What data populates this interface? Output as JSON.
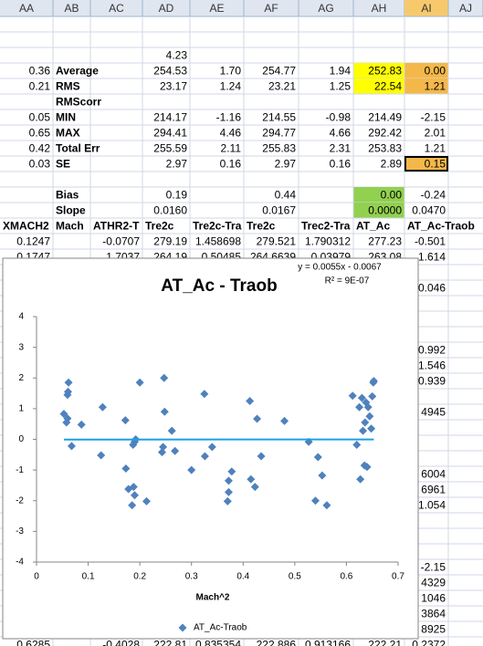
{
  "sheet": {
    "column_headers": [
      "AA",
      "AB",
      "AC",
      "AD",
      "AE",
      "AF",
      "AG",
      "AH",
      "AI",
      "AJ"
    ],
    "rows": [
      null,
      null,
      [
        null,
        null,
        null,
        "4.23",
        null,
        null,
        null,
        null,
        null,
        null
      ],
      [
        "0.36",
        "Average",
        null,
        "254.53",
        "1.70",
        "254.77",
        "1.94",
        "252.83",
        "0.00",
        null
      ],
      [
        "0.21",
        "RMS",
        null,
        "23.17",
        "1.24",
        "23.21",
        "1.25",
        "22.54",
        "1.21",
        null
      ],
      [
        null,
        "RMScorr",
        null,
        null,
        null,
        null,
        null,
        null,
        null,
        null
      ],
      [
        "0.05",
        "MIN",
        null,
        "214.17",
        "-1.16",
        "214.55",
        "-0.98",
        "214.49",
        "-2.15",
        null
      ],
      [
        "0.65",
        "MAX",
        null,
        "294.41",
        "4.46",
        "294.77",
        "4.66",
        "292.42",
        "2.01",
        null
      ],
      [
        "0.42",
        "Total Err",
        null,
        "255.59",
        "2.11",
        "255.83",
        "2.31",
        "253.83",
        "1.21",
        null
      ],
      [
        "0.03",
        "SE",
        null,
        "2.97",
        "0.16",
        "2.97",
        "0.16",
        "2.89",
        "0.15",
        null
      ],
      null,
      [
        null,
        "Bias",
        null,
        "0.19",
        null,
        "0.44",
        null,
        "0.00",
        "-0.24",
        null
      ],
      [
        null,
        "Slope",
        null,
        "0.0160",
        null,
        "0.0167",
        null,
        "0.0000",
        "0.0470",
        null
      ],
      [
        "XMACH2",
        "Mach",
        "ATHR2-T",
        "Tre2c",
        "Tre2c-Tra",
        "Tre2c",
        "Trec2-Tra",
        "AT_Ac",
        "AT_Ac-Traob",
        null
      ],
      [
        "0.1247",
        null,
        "-0.0707",
        "279.19",
        "1.458698",
        "279.521",
        "1.790312",
        "277.23",
        "-0.501",
        null
      ],
      [
        "0.1747",
        null,
        "1.7037",
        "264.19",
        "0.50485",
        "264.6639",
        "0.03979",
        "263.08",
        "1.614",
        null
      ],
      null,
      [
        null,
        null,
        null,
        null,
        null,
        null,
        null,
        null,
        "0.046",
        null
      ],
      null,
      null,
      null,
      [
        null,
        null,
        null,
        null,
        null,
        null,
        null,
        null,
        "0.992",
        null
      ],
      [
        null,
        null,
        null,
        null,
        null,
        null,
        null,
        null,
        "1.546",
        null
      ],
      [
        null,
        null,
        null,
        null,
        null,
        null,
        null,
        null,
        "0.939",
        null
      ],
      null,
      [
        null,
        null,
        null,
        null,
        null,
        null,
        null,
        null,
        "4945",
        null
      ],
      null,
      null,
      null,
      [
        null,
        null,
        null,
        null,
        null,
        null,
        null,
        null,
        "6004",
        null
      ],
      [
        null,
        null,
        null,
        null,
        null,
        null,
        null,
        null,
        "6961",
        null
      ],
      [
        null,
        null,
        null,
        null,
        null,
        null,
        null,
        null,
        "1.054",
        null
      ],
      null,
      null,
      null,
      [
        null,
        null,
        null,
        null,
        null,
        null,
        null,
        null,
        "-2.15",
        null
      ],
      [
        null,
        null,
        null,
        null,
        null,
        null,
        null,
        null,
        "4329",
        null
      ],
      [
        null,
        null,
        null,
        null,
        null,
        null,
        null,
        null,
        "1046",
        null
      ],
      [
        null,
        null,
        null,
        null,
        null,
        null,
        null,
        null,
        "3864",
        null
      ],
      [
        null,
        null,
        null,
        null,
        null,
        null,
        null,
        null,
        "8925",
        null
      ],
      [
        "0.6285",
        null,
        "-0.4028",
        "222.81",
        "0.835354",
        "222.886",
        "0.913166",
        "222.21",
        "0.2372",
        null
      ]
    ]
  },
  "chart_data": {
    "type": "scatter",
    "title": "AT_Ac - Traob",
    "annotations": [
      "y = 0.0055x - 0.0067",
      "R² = 9E-07"
    ],
    "x_label": "Mach^2",
    "xlim": [
      0,
      0.7
    ],
    "xticks": [
      0,
      0.1,
      0.2,
      0.3,
      0.4,
      0.5,
      0.6,
      0.7
    ],
    "ylim": [
      -4,
      4
    ],
    "yticks": [
      -4,
      -3,
      -2,
      -1,
      0,
      1,
      2,
      3,
      4
    ],
    "legend": "bottom",
    "trendline": {
      "slope": 0.0055,
      "intercept": -0.0067,
      "color": "#1ba1e2"
    },
    "series": [
      {
        "name": "AT_Ac-Traob",
        "color": "#4f81bd",
        "x": [
          0.062,
          0.061,
          0.06,
          0.053,
          0.06,
          0.058,
          0.068,
          0.087,
          0.128,
          0.125,
          0.172,
          0.173,
          0.178,
          0.185,
          0.187,
          0.19,
          0.192,
          0.188,
          0.19,
          0.2,
          0.213,
          0.247,
          0.248,
          0.243,
          0.245,
          0.262,
          0.268,
          0.3,
          0.325,
          0.326,
          0.34,
          0.37,
          0.372,
          0.372,
          0.378,
          0.413,
          0.415,
          0.423,
          0.427,
          0.435,
          0.48,
          0.527,
          0.54,
          0.545,
          0.553,
          0.562,
          0.612,
          0.62,
          0.625,
          0.627,
          0.63,
          0.632,
          0.635,
          0.638,
          0.64,
          0.642,
          0.645,
          0.648,
          0.65,
          0.652,
          0.653,
          0.636
        ],
        "values": [
          1.85,
          1.55,
          1.45,
          0.83,
          0.68,
          0.55,
          -0.22,
          0.48,
          1.05,
          -0.52,
          0.62,
          -0.95,
          -1.62,
          -2.15,
          -0.18,
          -0.08,
          0.0,
          -1.55,
          -1.82,
          1.85,
          -2.02,
          2.0,
          0.9,
          -0.42,
          -0.25,
          0.28,
          -0.38,
          -1.0,
          1.48,
          -0.55,
          -0.25,
          -2.02,
          -1.35,
          -1.72,
          -1.05,
          1.25,
          -1.3,
          -1.55,
          0.67,
          -0.55,
          0.6,
          -0.08,
          -2.0,
          -0.58,
          -1.18,
          -2.15,
          1.42,
          -0.18,
          1.05,
          -1.3,
          1.35,
          0.28,
          -0.85,
          1.2,
          -0.9,
          1.05,
          0.75,
          0.35,
          1.4,
          1.85,
          1.9,
          0.55
        ]
      }
    ]
  }
}
